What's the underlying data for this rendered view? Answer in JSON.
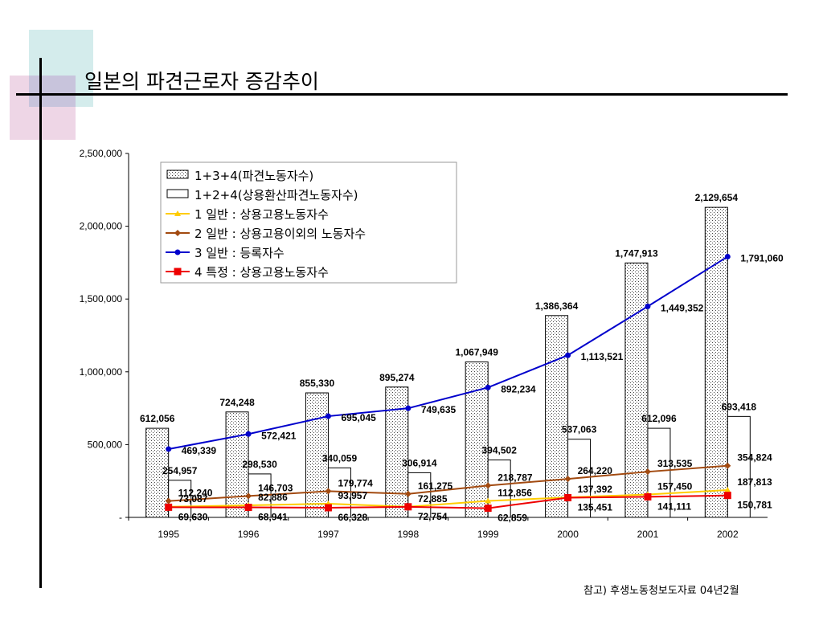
{
  "title": "일본의 파견근로자 증감추이",
  "footer": "참고) 후생노동청보도자료 04년2월",
  "colors": {
    "deco_teal": "#d4ecec",
    "deco_pink": "#eed6e6",
    "line_1": "#ffcc00",
    "line_2": "#a24a10",
    "line_3": "#0000cc",
    "line_4": "#ee0000"
  },
  "chart_data": {
    "type": "bar+line",
    "categories": [
      "1995",
      "1996",
      "1997",
      "1998",
      "1999",
      "2000",
      "2001",
      "2002"
    ],
    "ylim": [
      0,
      2500000
    ],
    "yticks": [
      "-",
      "500,000",
      "1,000,000",
      "1,500,000",
      "2,000,000",
      "2,500,000"
    ],
    "grid": false,
    "legend_position": "top-left",
    "bars": [
      {
        "name": "1+3+4(파견노동자수)",
        "style": "dotted",
        "values": [
          612056,
          724248,
          855330,
          895274,
          1067949,
          1386364,
          1747913,
          2129654
        ],
        "labels": [
          "612,056",
          "724,248",
          "855,330",
          "895,274",
          "1,067,949",
          "1,386,364",
          "1,747,913",
          "2,129,654"
        ]
      },
      {
        "name": "1+2+4(상용환산파견노동자수)",
        "style": "white",
        "values": [
          254957,
          298530,
          340059,
          306914,
          394502,
          537063,
          612096,
          693418
        ],
        "labels": [
          "254,957",
          "298,530",
          "340,059",
          "306,914",
          "394,502",
          "537,063",
          "612,096",
          "693,418"
        ]
      }
    ],
    "lines": [
      {
        "name": "1 일반 : 상용고용노동자수",
        "marker": "triangle",
        "values": [
          73087,
          82886,
          93957,
          72885,
          112856,
          137392,
          157450,
          187813
        ],
        "labels": [
          "73,087",
          "82,886",
          "93,957",
          "72,885",
          "112,856",
          "137,392",
          "157,450",
          "187,813"
        ]
      },
      {
        "name": "2 일반 : 상용고용이외의 노동자수",
        "marker": "diamond",
        "values": [
          112240,
          146703,
          179774,
          161275,
          218787,
          264220,
          313535,
          354824
        ],
        "labels": [
          "112,240",
          "146,703",
          "179,774",
          "161,275",
          "218,787",
          "264,220",
          "313,535",
          "354,824"
        ]
      },
      {
        "name": "3 일반 : 등록자수",
        "marker": "circle",
        "values": [
          469339,
          572421,
          695045,
          749635,
          892234,
          1113521,
          1449352,
          1791060
        ],
        "labels": [
          "469,339",
          "572,421",
          "695,045",
          "749,635",
          "892,234",
          "1,113,521",
          "1,449,352",
          "1,791,060"
        ]
      },
      {
        "name": "4 특정 : 상용고용노동자수",
        "marker": "square",
        "values": [
          69630,
          68941,
          66328,
          72754,
          62859,
          135451,
          141111,
          150781
        ],
        "labels": [
          "69,630",
          "68,941",
          "66,328",
          "72,754",
          "62,859",
          "135,451",
          "141,111",
          "150,781"
        ]
      }
    ]
  }
}
